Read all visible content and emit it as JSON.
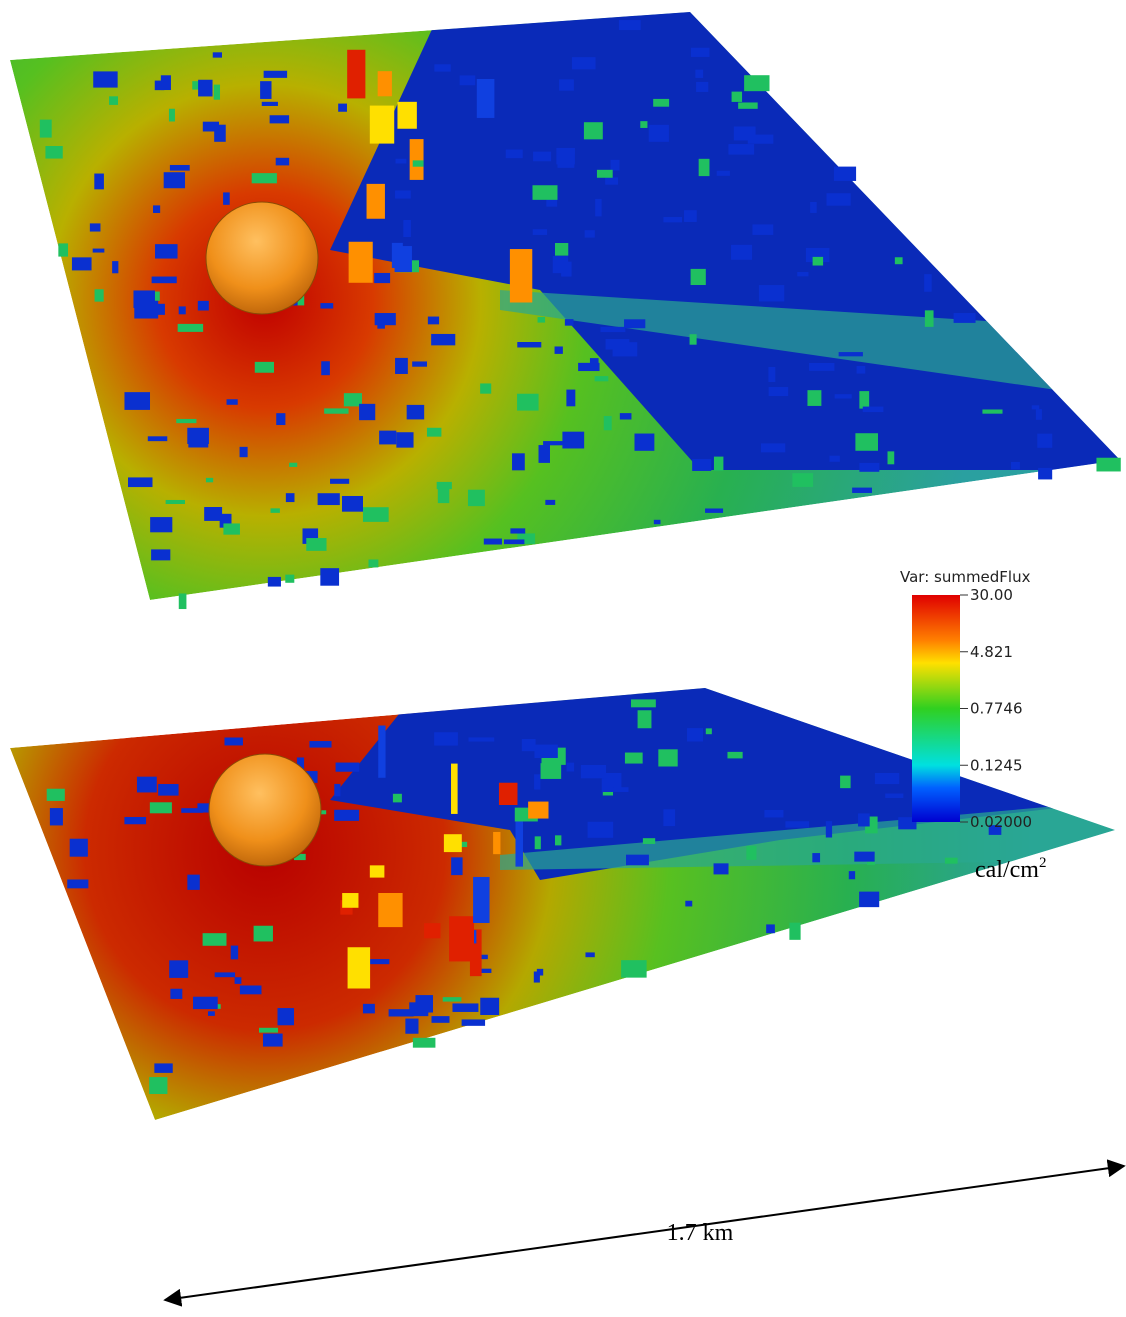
{
  "colorbar": {
    "title": "Var: summedFlux",
    "tick_labels": [
      "30.00",
      "4.821",
      "0.7746",
      "0.1245",
      "0.02000"
    ],
    "unit": "cal/cm",
    "unit_exponent": "2"
  },
  "scale_bar": {
    "label": "1.7 km"
  }
}
